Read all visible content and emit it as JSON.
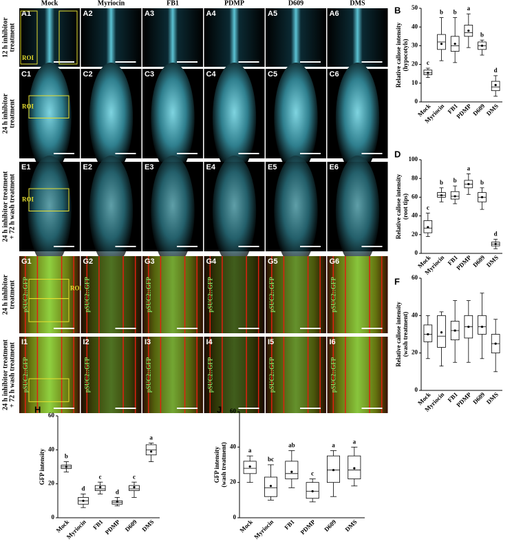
{
  "figure": {
    "columns": [
      "Mock",
      "Myriocin",
      "FB1",
      "PDMP",
      "D609",
      "DMS"
    ],
    "rows": [
      {
        "label": [
          "12 h inhibitor",
          "treatment"
        ],
        "panels": [
          "A1",
          "A2",
          "A3",
          "A4",
          "A5",
          "A6"
        ],
        "roi": "ROI"
      },
      {
        "label": [
          "24 h inhibitor",
          "treatment"
        ],
        "panels": [
          "C1",
          "C2",
          "C3",
          "C4",
          "C5",
          "C6"
        ],
        "roi": "ROI"
      },
      {
        "label": [
          "24 h inhibitor treatment",
          "+ 72 h wash treatment"
        ],
        "panels": [
          "E1",
          "E2",
          "E3",
          "E4",
          "E5",
          "E6"
        ],
        "roi": "ROI"
      },
      {
        "label": [
          "24 h inhibitor",
          "treatment"
        ],
        "panels": [
          "G1",
          "G2",
          "G3",
          "G4",
          "G5",
          "G6"
        ],
        "roi": "ROI",
        "reporter": "pSUC2::GFP"
      },
      {
        "label": [
          "24 h inhibitor treatment",
          "+ 72 h wash treatment"
        ],
        "panels": [
          "I1",
          "I2",
          "I3",
          "I4",
          "I5",
          "I6"
        ],
        "reporter": "pSUC2::GFP"
      }
    ]
  },
  "chart_data": [
    {
      "type": "box",
      "panel": "B",
      "ylabel": [
        "Relative callose intensity",
        "(hypocotyls)"
      ],
      "categories": [
        "Mock",
        "Myriocin",
        "FB1",
        "PDMP",
        "D609",
        "DMS"
      ],
      "ylim": [
        0,
        50
      ],
      "yticks": [
        0,
        10,
        20,
        30,
        40,
        50
      ],
      "whisker_low": [
        13,
        22,
        21,
        29,
        25,
        3
      ],
      "q1": [
        14.5,
        28,
        27,
        35,
        28,
        6
      ],
      "median": [
        15.5,
        32,
        30,
        37,
        30,
        8
      ],
      "q3": [
        17,
        36,
        35,
        41,
        32,
        11
      ],
      "whisker_high": [
        18,
        45,
        45,
        47,
        33,
        14
      ],
      "mean": [
        15.5,
        31,
        31,
        38,
        30,
        9
      ],
      "letters": [
        "c",
        "b",
        "b",
        "a",
        "b",
        "d"
      ]
    },
    {
      "type": "box",
      "panel": "D",
      "ylabel": [
        "Relative callose intensity",
        "(root tips)"
      ],
      "categories": [
        "Mock",
        "Myriocin",
        "FB1",
        "PDMP",
        "D609",
        "DMS"
      ],
      "ylim": [
        0,
        100
      ],
      "yticks": [
        0,
        20,
        40,
        60,
        80,
        100
      ],
      "whisker_low": [
        18,
        55,
        53,
        63,
        47,
        5
      ],
      "q1": [
        22,
        60,
        58,
        70,
        55,
        8
      ],
      "median": [
        27,
        62,
        61,
        74,
        60,
        10
      ],
      "q3": [
        35,
        65,
        66,
        78,
        65,
        12
      ],
      "whisker_high": [
        43,
        70,
        72,
        85,
        70,
        15
      ],
      "mean": [
        28,
        62,
        61,
        74,
        60,
        10
      ],
      "letters": [
        "c",
        "b",
        "b",
        "a",
        "b",
        "d"
      ]
    },
    {
      "type": "box",
      "panel": "F",
      "ylabel": [
        "Relative callose intensity",
        "(wash treatment)"
      ],
      "categories": [
        "Mock",
        "Myriocin",
        "FB1",
        "PDMP",
        "D609",
        "DMS"
      ],
      "ylim": [
        0,
        60
      ],
      "yticks": [
        0,
        20,
        40,
        60
      ],
      "whisker_low": [
        17,
        13,
        15,
        15,
        17,
        10
      ],
      "q1": [
        26,
        23,
        27,
        28,
        30,
        20
      ],
      "median": [
        30,
        29,
        32,
        34,
        34,
        25
      ],
      "q3": [
        35,
        40,
        37,
        40,
        40,
        30
      ],
      "whisker_high": [
        40,
        42,
        48,
        48,
        52,
        38
      ],
      "mean": [
        30,
        31,
        32,
        34,
        34,
        25
      ]
    },
    {
      "type": "box",
      "panel": "H",
      "ylabel": [
        "GFP intensity"
      ],
      "categories": [
        "Mock",
        "Myriocin",
        "FB1",
        "PDMP",
        "D609",
        "DMS"
      ],
      "ylim": [
        0,
        60
      ],
      "yticks": [
        0,
        20,
        40,
        60
      ],
      "whisker_low": [
        27,
        6,
        14,
        7,
        12,
        33
      ],
      "q1": [
        29,
        8,
        16,
        8,
        16,
        37
      ],
      "median": [
        30,
        10,
        17,
        9,
        17,
        40
      ],
      "q3": [
        31,
        12,
        19,
        10,
        19,
        43
      ],
      "whisker_high": [
        33,
        14,
        21,
        12,
        21,
        44
      ],
      "mean": [
        30,
        10,
        18,
        9.5,
        18,
        39
      ],
      "letters": [
        "b",
        "d",
        "c",
        "d",
        "c",
        "a"
      ]
    },
    {
      "type": "box",
      "panel": "J",
      "ylabel": [
        "GFP intensity",
        "(wash treatment)"
      ],
      "categories": [
        "Mock",
        "Myriocin",
        "FB1",
        "PDMP",
        "D609",
        "DMS"
      ],
      "ylim": [
        0,
        60
      ],
      "yticks": [
        0,
        20,
        40,
        60
      ],
      "whisker_low": [
        20,
        10,
        17,
        9,
        12,
        18
      ],
      "q1": [
        25,
        12,
        22,
        11,
        20,
        22
      ],
      "median": [
        28,
        17,
        25,
        15,
        27,
        27
      ],
      "q3": [
        32,
        23,
        32,
        20,
        35,
        35
      ],
      "whisker_high": [
        35,
        30,
        38,
        22,
        38,
        40
      ],
      "mean": [
        29,
        18,
        26,
        15,
        27,
        28
      ],
      "letters": [
        "a",
        "bc",
        "ab",
        "c",
        "a",
        "a"
      ]
    }
  ]
}
